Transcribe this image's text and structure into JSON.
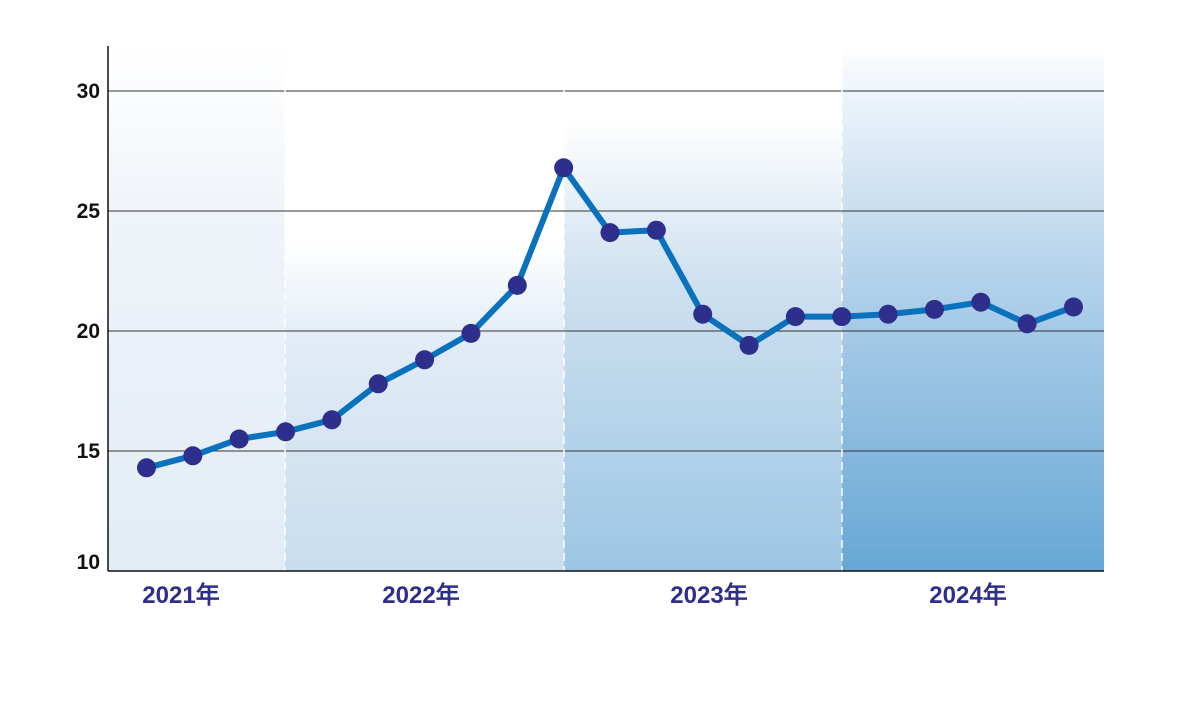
{
  "chart_data": {
    "type": "line",
    "title": "",
    "xlabel": "",
    "ylabel": "",
    "ylim": [
      10,
      32
    ],
    "yticks": [
      10,
      15,
      20,
      25,
      30
    ],
    "grid": true,
    "year_labels": [
      "2021年",
      "2022年",
      "2023年",
      "2024年"
    ],
    "series": [
      {
        "values": [
          14.3,
          14.8,
          15.5,
          15.8,
          16.3,
          17.8,
          18.8,
          19.9,
          21.9,
          26.8,
          24.1,
          24.2,
          20.7,
          19.4,
          20.6,
          20.6,
          20.7,
          20.9,
          21.2,
          20.3,
          21.0
        ]
      }
    ]
  },
  "colors": {
    "line": "#0a72bc",
    "marker": "#2e2e8c",
    "band_start": "#e6eef7",
    "band_end": "#6aa9d6",
    "axis_label": "#2e2e8c"
  }
}
